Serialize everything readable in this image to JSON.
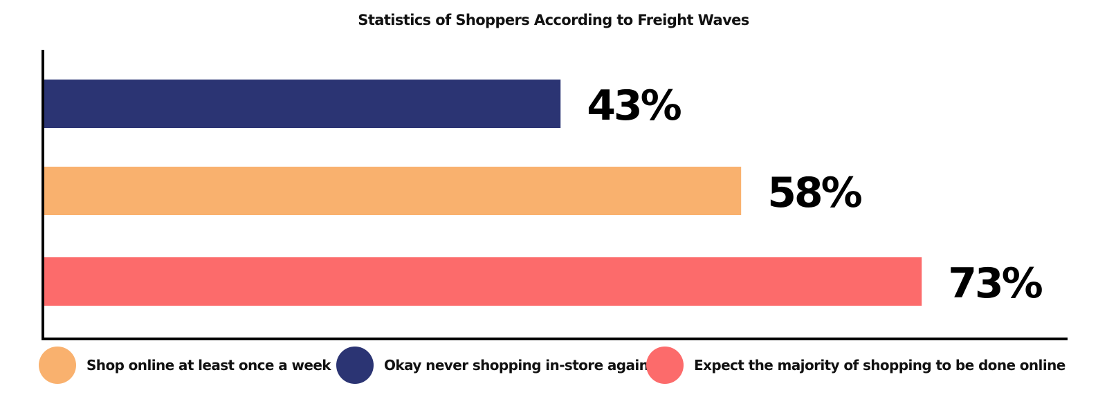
{
  "chart_data": {
    "type": "bar",
    "orientation": "horizontal",
    "title": "Statistics of Shoppers According to Freight Waves",
    "xlabel": "",
    "ylabel": "",
    "xlim": [
      0,
      100
    ],
    "grid": false,
    "legend_position": "bottom",
    "bars": [
      {
        "series": "Okay never shopping in-store again",
        "value": 43,
        "label": "43%",
        "color": "#2b3473"
      },
      {
        "series": "Shop online at least once a week",
        "value": 58,
        "label": "58%",
        "color": "#f9b16e"
      },
      {
        "series": "Expect the majority of shopping to be done online",
        "value": 73,
        "label": "73%",
        "color": "#fc6b6b"
      }
    ],
    "legend": [
      {
        "name": "Shop online at least once a week",
        "color": "#f9b16e"
      },
      {
        "name": "Okay never shopping in-store again",
        "color": "#2b3473"
      },
      {
        "name": "Expect the majority of shopping to be done online",
        "color": "#fc6b6b"
      }
    ]
  }
}
